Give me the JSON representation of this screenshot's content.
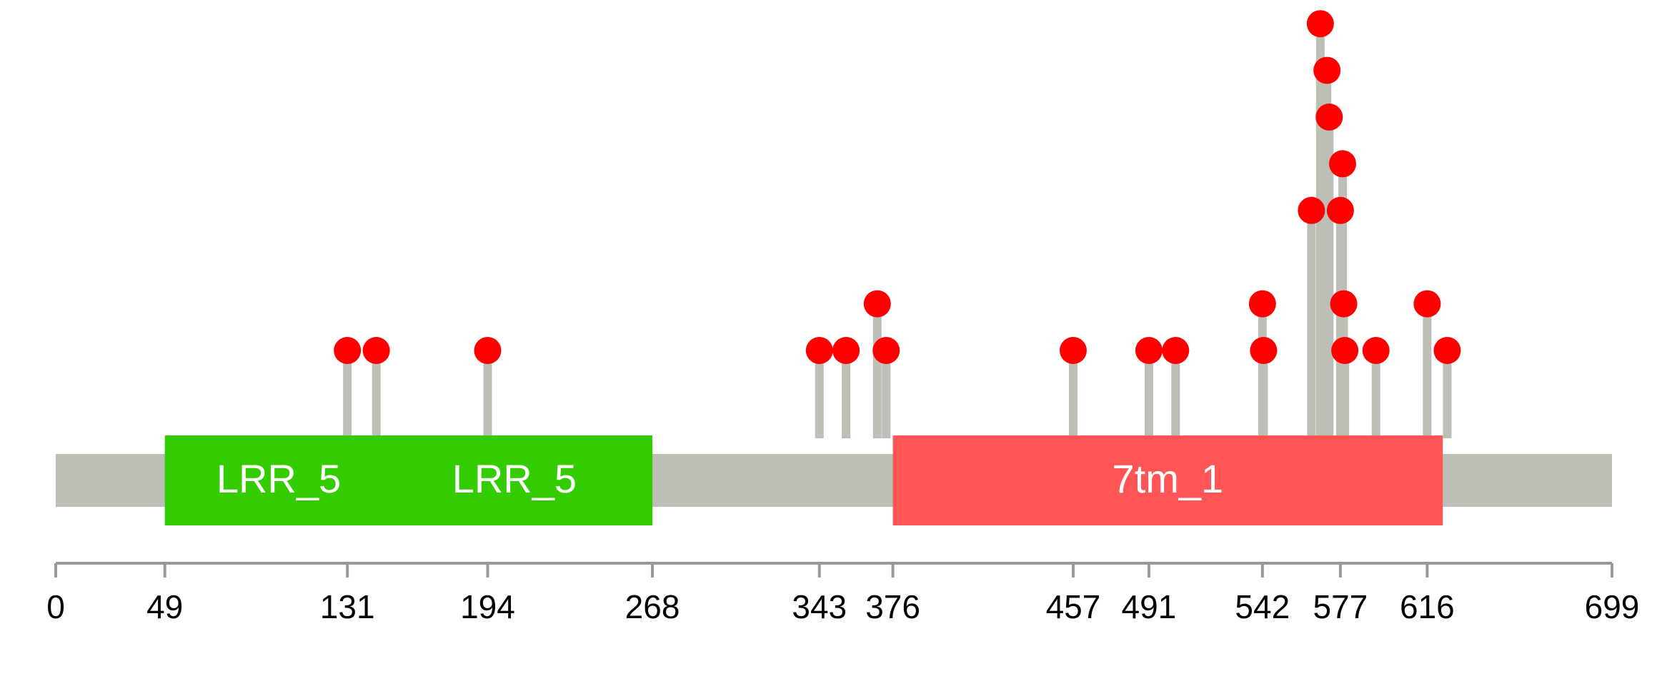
{
  "chart_data": {
    "type": "lollipop",
    "protein_length": 699,
    "x_range": [
      0,
      699
    ],
    "axis_ticks": [
      0,
      49,
      131,
      194,
      268,
      343,
      376,
      457,
      491,
      542,
      577,
      616,
      699
    ],
    "domains": [
      {
        "name": "LRR_5",
        "start": 49,
        "end": 150,
        "color": "#33cc00"
      },
      {
        "name": "LRR_5",
        "start": 144,
        "end": 268,
        "color": "#33cc00"
      },
      {
        "name": "7tm_1",
        "start": 376,
        "end": 623,
        "color": "#ff5555"
      }
    ],
    "mutations": [
      {
        "position": 131,
        "count": 1
      },
      {
        "position": 144,
        "count": 1
      },
      {
        "position": 194,
        "count": 1
      },
      {
        "position": 343,
        "count": 1
      },
      {
        "position": 355,
        "count": 1
      },
      {
        "position": 369,
        "count": 2
      },
      {
        "position": 373,
        "count": 1
      },
      {
        "position": 457,
        "count": 1
      },
      {
        "position": 491,
        "count": 1
      },
      {
        "position": 503,
        "count": 1
      },
      {
        "position": 542,
        "count": 2
      },
      {
        "position": 542.5,
        "count": 1
      },
      {
        "position": 564,
        "count": 4
      },
      {
        "position": 568,
        "count": 8
      },
      {
        "position": 571,
        "count": 7
      },
      {
        "position": 572,
        "count": 6
      },
      {
        "position": 577,
        "count": 4
      },
      {
        "position": 578,
        "count": 5
      },
      {
        "position": 578.5,
        "count": 2
      },
      {
        "position": 579,
        "count": 1
      },
      {
        "position": 593,
        "count": 1
      },
      {
        "position": 616,
        "count": 2
      },
      {
        "position": 625,
        "count": 1
      }
    ],
    "colors": {
      "backbone": "#bdbeb6",
      "stem": "#bdbeb6",
      "dot": "#ff0000",
      "axis": "#999999"
    }
  }
}
